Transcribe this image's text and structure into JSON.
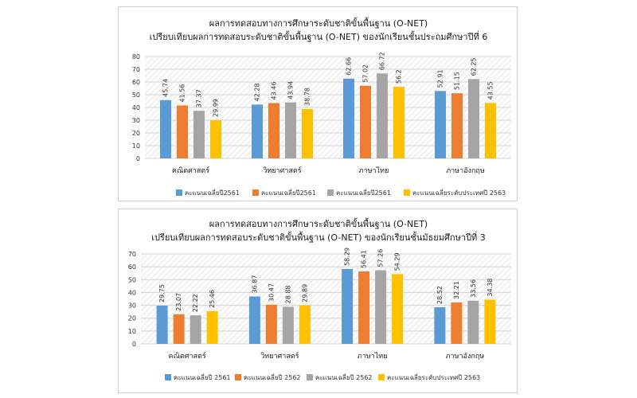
{
  "chart_data": [
    {
      "type": "bar",
      "title": "ผลการทดสอบทางการศึกษาระดับชาติขั้นพื้นฐาน (O-NET)",
      "subtitle": "เปรียบเทียบผลการทดสอบระดับชาติขั้นพื้นฐาน (O-NET) ของนักเรียนชั้นประถมศึกษาปีที่ 6",
      "categories": [
        "คณิตศาสตร์",
        "วิทยาศาสตร์",
        "ภาษาไทย",
        "ภาษาอังกฤษ"
      ],
      "series": [
        {
          "name": "คะแนนเฉลี่ยปี2561",
          "color": "#5b9bd5",
          "values": [
            45.74,
            42.28,
            62.66,
            52.91
          ]
        },
        {
          "name": "คะแนนเฉลี่ยปี2561",
          "color": "#ed7d31",
          "values": [
            41.56,
            43.46,
            57.02,
            51.15
          ]
        },
        {
          "name": "คะแนนเฉลี่ยปี2561",
          "color": "#a5a5a5",
          "values": [
            37.37,
            43.94,
            66.72,
            62.25
          ]
        },
        {
          "name": "คะแนนเฉลี่ยระดับประเทศปี 2563",
          "color": "#ffc000",
          "values": [
            29.99,
            38.78,
            56.2,
            43.55
          ]
        }
      ],
      "ylim": [
        0,
        80
      ],
      "yticks": [
        0,
        10,
        20,
        30,
        40,
        50,
        60,
        70,
        80
      ],
      "grid": true,
      "legend": "bottom"
    },
    {
      "type": "bar",
      "title": "ผลการทดสอบทางการศึกษาระดับชาติขั้นพื้นฐาน (O-NET)",
      "subtitle": "เปรียบเทียบผลการทดสอบระดับชาติขั้นพื้นฐาน (O-NET) ของนักเรียนชั้นมัธยมศึกษาปีที่ 3",
      "categories": [
        "คณิตศาสตร์",
        "วิทยาศาสตร์",
        "ภาษาไทย",
        "ภาษาอังกฤษ"
      ],
      "series": [
        {
          "name": "คะแนนเฉลี่ยปี 2561",
          "color": "#5b9bd5",
          "values": [
            29.75,
            36.87,
            58.29,
            28.52
          ]
        },
        {
          "name": "คะแนนเฉลี่ยปี 2562",
          "color": "#ed7d31",
          "values": [
            23.07,
            30.47,
            56.41,
            32.21
          ]
        },
        {
          "name": "คะแนนเฉลี่ยปี 2562",
          "color": "#a5a5a5",
          "values": [
            22.22,
            28.88,
            57.26,
            33.56
          ]
        },
        {
          "name": "คะแนนเฉลี่ยระดับประเทศปี 2563",
          "color": "#ffc000",
          "values": [
            25.46,
            29.89,
            54.29,
            34.38
          ]
        }
      ],
      "ylim": [
        0,
        70
      ],
      "yticks": [
        0,
        10,
        20,
        30,
        40,
        50,
        60,
        70
      ],
      "grid": true,
      "legend": "bottom"
    }
  ]
}
